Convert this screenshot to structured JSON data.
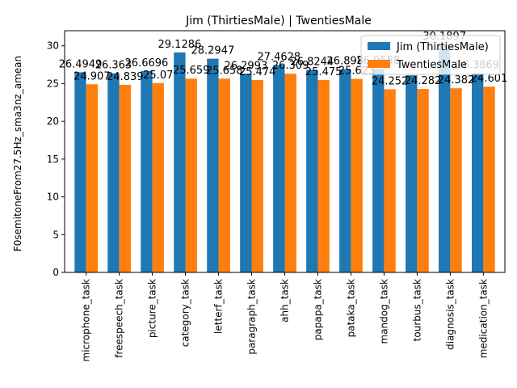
{
  "chart_data": {
    "type": "bar",
    "title": "Jim (ThirtiesMale) | TwentiesMale",
    "xlabel": "",
    "ylabel": "F0semitoneFrom27.5Hz_sma3nz_amean",
    "ylim": [
      0,
      32
    ],
    "yticks": [
      0,
      5,
      10,
      15,
      20,
      25,
      30
    ],
    "categories": [
      "microphone_task",
      "freespeech_task",
      "picture_task",
      "category_task",
      "letterf_task",
      "paragraph_task",
      "ahh_task",
      "papapa_task",
      "pataka_task",
      "mandog_task",
      "tourbus_task",
      "diagnosis_task",
      "medication_task"
    ],
    "series": [
      {
        "name": "Jim (ThirtiesMale)",
        "color": "#1f77b4",
        "values": [
          26.4949,
          26.363,
          26.6696,
          29.1286,
          28.2947,
          26.2993,
          27.4628,
          26.8244,
          26.898,
          26.9558,
          26.1,
          30.1897,
          26.3869
        ],
        "labels": [
          "26.4949",
          "26.363",
          "26.6696",
          "29.1286",
          "28.2947",
          "26.2993",
          "27.4628",
          "26.8244",
          "26.898",
          "26.9558",
          "",
          "30.1897",
          "26.3869"
        ]
      },
      {
        "name": "TwentiesMale",
        "color": "#ff7f0e",
        "values": [
          24.907,
          24.839,
          25.07,
          25.659,
          25.658,
          25.474,
          26.309,
          25.475,
          25.623,
          24.252,
          24.282,
          24.382,
          24.601
        ],
        "labels": [
          "24.907",
          "24.839",
          "25.07",
          "25.659",
          "25.658",
          "25.474",
          "26.309",
          "25.475",
          "25.623",
          "24.252",
          "24.282",
          "24.382",
          "24.601"
        ]
      }
    ],
    "legend": "top-right",
    "grid": false
  }
}
